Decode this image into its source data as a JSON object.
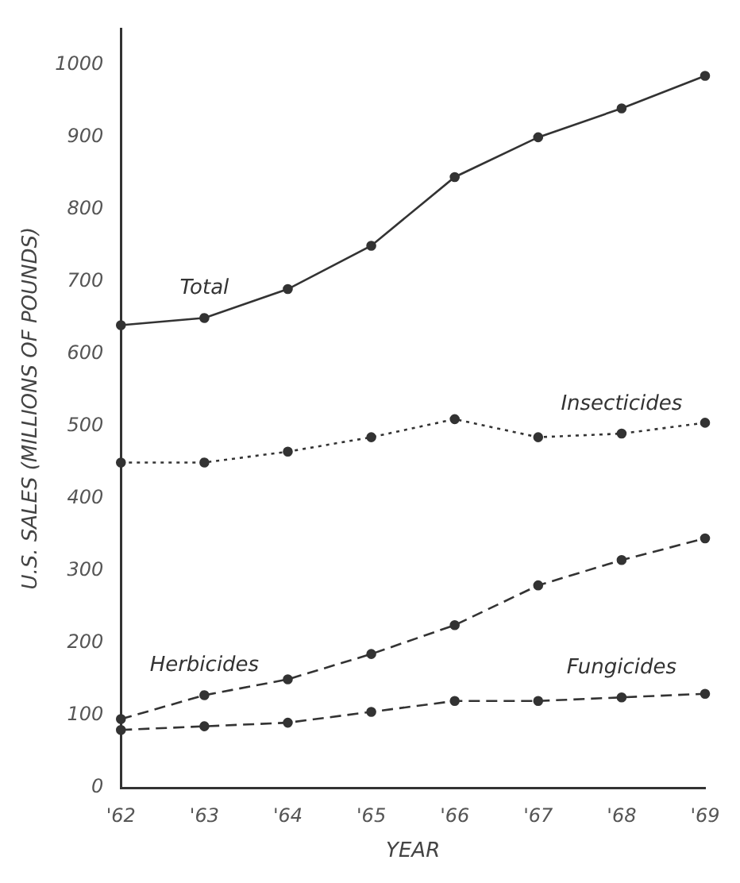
{
  "chart_data": {
    "type": "line",
    "xlabel": "YEAR",
    "ylabel": "U.S. SALES (MILLIONS OF POUNDS)",
    "categories": [
      "'62",
      "'63",
      "'64",
      "'65",
      "'66",
      "'67",
      "'68",
      "'69"
    ],
    "series": [
      {
        "name": "Total",
        "color": "#333333",
        "line_style": "solid",
        "values": [
          640,
          650,
          690,
          750,
          845,
          900,
          940,
          985
        ]
      },
      {
        "name": "Insecticides",
        "color": "#333333",
        "line_style": "dotted",
        "values": [
          450,
          450,
          465,
          485,
          510,
          485,
          490,
          505
        ]
      },
      {
        "name": "Herbicides",
        "color": "#333333",
        "line_style": "dashed",
        "values": [
          95,
          128,
          150,
          185,
          225,
          280,
          315,
          345
        ]
      },
      {
        "name": "Fungicides",
        "color": "#333333",
        "line_style": "dashed",
        "values": [
          80,
          85,
          90,
          105,
          120,
          120,
          125,
          130
        ]
      }
    ],
    "ylim": [
      0,
      1050
    ],
    "yticks": [
      0,
      100,
      200,
      300,
      400,
      500,
      600,
      700,
      800,
      900,
      1000
    ],
    "grid": false,
    "legend": false,
    "marker": "circle"
  }
}
